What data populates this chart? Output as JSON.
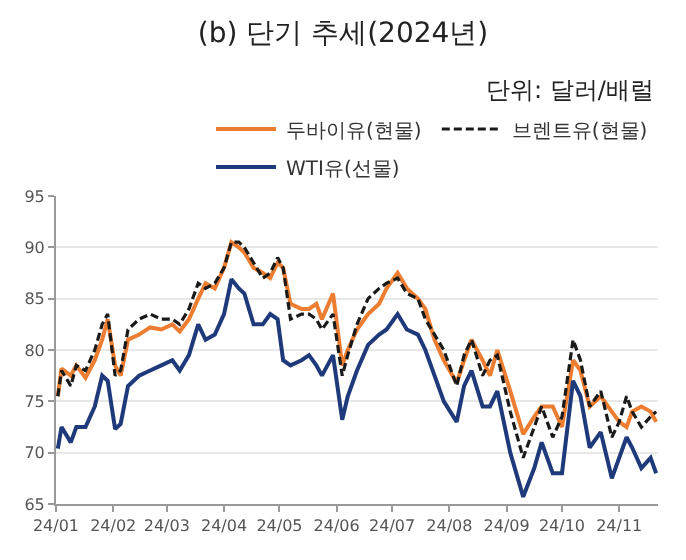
{
  "chart_data": {
    "type": "line",
    "title": "(b) 단기 추세(2024년)",
    "annotations": [
      "단위: 달러/배럴"
    ],
    "x": [
      "2024-01-02",
      "2024-01-04",
      "2024-01-09",
      "2024-01-12",
      "2024-01-17",
      "2024-01-22",
      "2024-01-26",
      "2024-01-29",
      "2024-02-02",
      "2024-02-05",
      "2024-02-09",
      "2024-02-15",
      "2024-02-21",
      "2024-02-27",
      "2024-03-04",
      "2024-03-08",
      "2024-03-13",
      "2024-03-18",
      "2024-03-22",
      "2024-03-27",
      "2024-04-01",
      "2024-04-05",
      "2024-04-09",
      "2024-04-12",
      "2024-04-17",
      "2024-04-22",
      "2024-04-26",
      "2024-04-30",
      "2024-05-03",
      "2024-05-07",
      "2024-05-13",
      "2024-05-17",
      "2024-05-21",
      "2024-05-24",
      "2024-05-30",
      "2024-06-04",
      "2024-06-07",
      "2024-06-12",
      "2024-06-18",
      "2024-06-24",
      "2024-06-28",
      "2024-07-04",
      "2024-07-09",
      "2024-07-15",
      "2024-07-19",
      "2024-07-24",
      "2024-07-29",
      "2024-08-05",
      "2024-08-09",
      "2024-08-13",
      "2024-08-19",
      "2024-08-23",
      "2024-08-27",
      "2024-09-03",
      "2024-09-10",
      "2024-09-16",
      "2024-09-20",
      "2024-09-26",
      "2024-10-01",
      "2024-10-07",
      "2024-10-11",
      "2024-10-16",
      "2024-10-22",
      "2024-10-28",
      "2024-11-01",
      "2024-11-05",
      "2024-11-08",
      "2024-11-13",
      "2024-11-18",
      "2024-11-21"
    ],
    "series": [
      {
        "name": "두바이유(현물)",
        "color": "#ed7d31",
        "line_style": "solid",
        "values": [
          75.5,
          78.2,
          77.5,
          78.5,
          77.3,
          79,
          81,
          83,
          78.5,
          77.5,
          81,
          81.5,
          82.2,
          82,
          82.5,
          81.8,
          83,
          85,
          86.5,
          86,
          88,
          90.5,
          90,
          89.5,
          88,
          87.5,
          87,
          88.5,
          88,
          84.5,
          84,
          84,
          84.5,
          83,
          85.5,
          78.5,
          80,
          82,
          83.5,
          84.5,
          86,
          87.5,
          86,
          85,
          84,
          81,
          79,
          76.8,
          79,
          81,
          79,
          77.5,
          80,
          76,
          71.8,
          73.5,
          74.5,
          74.5,
          72.5,
          79,
          78,
          74.5,
          75.5,
          74,
          73,
          72.5,
          74,
          74.5,
          74,
          73
        ]
      },
      {
        "name": "브렌트유(현물)",
        "color": "#1a1a1a",
        "line_style": "dashed",
        "values": [
          75.5,
          78,
          76.5,
          78.5,
          78,
          80,
          82.5,
          83.5,
          77.5,
          78,
          82,
          83,
          83.5,
          83,
          83,
          82.5,
          84,
          86.5,
          86,
          86.5,
          88,
          90.5,
          90.5,
          90,
          88.5,
          87,
          87.5,
          89,
          88,
          83,
          83.5,
          83.5,
          83,
          82,
          83.5,
          77.5,
          79.5,
          82.5,
          85,
          86,
          86.5,
          87,
          85.5,
          85,
          83,
          81.5,
          80,
          76.5,
          79.5,
          81,
          77.5,
          79,
          79.5,
          74,
          69.5,
          72.5,
          74.5,
          71.5,
          73.5,
          81,
          79,
          74.5,
          76,
          71.5,
          73,
          75.5,
          74,
          72.5,
          73.5,
          74
        ]
      },
      {
        "name": "WTI유(선물)",
        "color": "#1f3a7a",
        "line_style": "solid",
        "values": [
          70.4,
          72.5,
          71,
          72.5,
          72.5,
          74.5,
          77.5,
          77,
          72.3,
          72.8,
          76.5,
          77.5,
          78,
          78.5,
          79,
          78,
          79.5,
          82.5,
          81,
          81.5,
          83.5,
          86.9,
          86,
          85.5,
          82.5,
          82.5,
          83.5,
          83,
          79,
          78.5,
          79,
          79.5,
          78.5,
          77.5,
          79.5,
          73.2,
          75.5,
          78,
          80.5,
          81.5,
          82,
          83.5,
          82,
          81.5,
          80,
          77.5,
          75,
          73,
          76.5,
          78,
          74.5,
          74.5,
          76,
          70,
          65.7,
          68.5,
          71,
          68,
          68,
          77,
          75.5,
          70.5,
          72,
          67.5,
          69.5,
          71.5,
          70.5,
          68.5,
          69.5,
          68
        ]
      }
    ],
    "xlim": [
      "2024-01-01",
      "2024-11-22"
    ],
    "xticks": [
      {
        "value": "2024-01-01",
        "label": "24/01"
      },
      {
        "value": "2024-02-01",
        "label": "24/02"
      },
      {
        "value": "2024-03-01",
        "label": "24/03"
      },
      {
        "value": "2024-04-01",
        "label": "24/04"
      },
      {
        "value": "2024-05-01",
        "label": "24/05"
      },
      {
        "value": "2024-06-01",
        "label": "24/06"
      },
      {
        "value": "2024-07-01",
        "label": "24/07"
      },
      {
        "value": "2024-08-01",
        "label": "24/08"
      },
      {
        "value": "2024-09-01",
        "label": "24/09"
      },
      {
        "value": "2024-10-01",
        "label": "24/10"
      },
      {
        "value": "2024-11-01",
        "label": "24/11"
      }
    ],
    "ylim": [
      65,
      95
    ],
    "yticks": [
      65,
      70,
      75,
      80,
      85,
      90,
      95
    ],
    "grid": "y",
    "legend": "top right",
    "marker": "none"
  }
}
